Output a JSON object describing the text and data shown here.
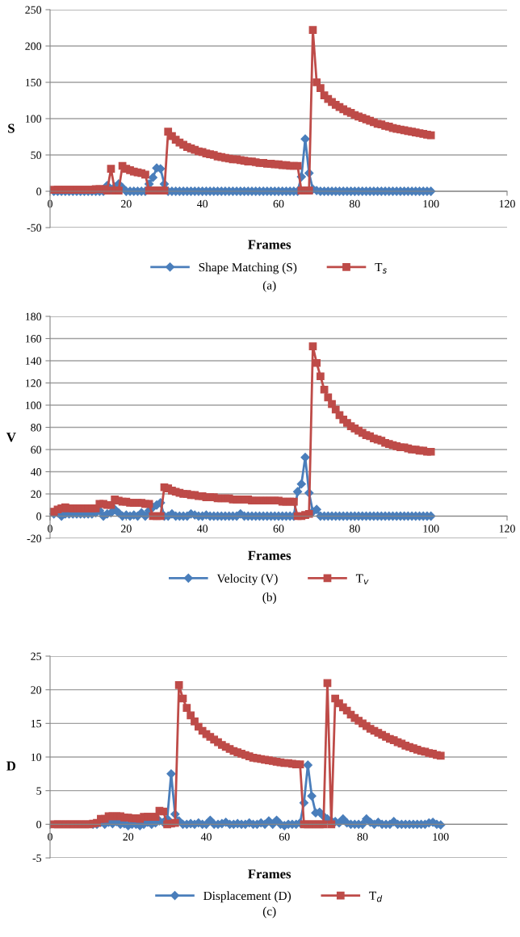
{
  "chart_data": [
    {
      "type": "line",
      "xlabel": "Frames",
      "ylabel": "S",
      "annotations": [
        "(a)"
      ],
      "xlim": [
        0,
        120
      ],
      "xticks": [
        0,
        20,
        40,
        60,
        80,
        100,
        120
      ],
      "ylim": [
        -50,
        250
      ],
      "yticks": [
        -50,
        0,
        50,
        100,
        150,
        200,
        250
      ],
      "grid": "y",
      "legend": "bottom",
      "x": [
        1,
        2,
        3,
        4,
        5,
        6,
        7,
        8,
        9,
        10,
        11,
        12,
        13,
        14,
        15,
        16,
        17,
        18,
        19,
        20,
        21,
        22,
        23,
        24,
        25,
        26,
        27,
        28,
        29,
        30,
        31,
        32,
        33,
        34,
        35,
        36,
        37,
        38,
        39,
        40,
        41,
        42,
        43,
        44,
        45,
        46,
        47,
        48,
        49,
        50,
        51,
        52,
        53,
        54,
        55,
        56,
        57,
        58,
        59,
        60,
        61,
        62,
        63,
        64,
        65,
        66,
        67,
        68,
        69,
        70,
        71,
        72,
        73,
        74,
        75,
        76,
        77,
        78,
        79,
        80,
        81,
        82,
        83,
        84,
        85,
        86,
        87,
        88,
        89,
        90,
        91,
        92,
        93,
        94,
        95,
        96,
        97,
        98,
        99,
        100
      ],
      "series": [
        {
          "name": "Shape Matching (S)",
          "color": "#4a7ebb",
          "marker": "diamond",
          "values": [
            0,
            0,
            0,
            0,
            0,
            0,
            0,
            0,
            0,
            0,
            0,
            0,
            0,
            0,
            8,
            2,
            6,
            10,
            5,
            0,
            0,
            0,
            0,
            0,
            0,
            10,
            19,
            32,
            31,
            10,
            0,
            0,
            0,
            0,
            0,
            0,
            0,
            0,
            0,
            0,
            0,
            0,
            0,
            0,
            0,
            0,
            0,
            0,
            0,
            0,
            0,
            0,
            0,
            0,
            0,
            0,
            0,
            0,
            0,
            0,
            0,
            0,
            0,
            0,
            0,
            20,
            72,
            25,
            3,
            1,
            0,
            0,
            0,
            0,
            0,
            0,
            0,
            0,
            0,
            0,
            0,
            0,
            0,
            0,
            0,
            0,
            0,
            0,
            0,
            0,
            0,
            0,
            0,
            0,
            0,
            0,
            0,
            0,
            0,
            0
          ]
        },
        {
          "name": "T$_{s}$",
          "color": "#be4b48",
          "marker": "square",
          "values": [
            2,
            2,
            2,
            2,
            2,
            2,
            2,
            2,
            2,
            2,
            2,
            3,
            3,
            3,
            1,
            31,
            1,
            1,
            35,
            31,
            29,
            27,
            26,
            25,
            23,
            1,
            1,
            1,
            1,
            1,
            82,
            76,
            71,
            67,
            64,
            61,
            59,
            57,
            55,
            54,
            52,
            51,
            50,
            48,
            47,
            46,
            45,
            44,
            44,
            43,
            42,
            41,
            41,
            40,
            39,
            39,
            38,
            38,
            37,
            37,
            36,
            36,
            35,
            35,
            35,
            1,
            1,
            1,
            222,
            150,
            142,
            132,
            127,
            123,
            119,
            116,
            113,
            110,
            108,
            105,
            103,
            101,
            99,
            97,
            95,
            93,
            92,
            90,
            89,
            87,
            86,
            85,
            84,
            83,
            82,
            81,
            80,
            79,
            78,
            77
          ]
        }
      ]
    },
    {
      "type": "line",
      "xlabel": "Frames",
      "ylabel": "V",
      "annotations": [
        "(b)"
      ],
      "xlim": [
        0,
        120
      ],
      "xticks": [
        0,
        20,
        40,
        60,
        80,
        100,
        120
      ],
      "ylim": [
        -20,
        180
      ],
      "yticks": [
        -20,
        0,
        20,
        40,
        60,
        80,
        100,
        120,
        140,
        160,
        180
      ],
      "grid": "y",
      "legend": "bottom",
      "x": [
        1,
        2,
        3,
        4,
        5,
        6,
        7,
        8,
        9,
        10,
        11,
        12,
        13,
        14,
        15,
        16,
        17,
        18,
        19,
        20,
        21,
        22,
        23,
        24,
        25,
        26,
        27,
        28,
        29,
        30,
        31,
        32,
        33,
        34,
        35,
        36,
        37,
        38,
        39,
        40,
        41,
        42,
        43,
        44,
        45,
        46,
        47,
        48,
        49,
        50,
        51,
        52,
        53,
        54,
        55,
        56,
        57,
        58,
        59,
        60,
        61,
        62,
        63,
        64,
        65,
        66,
        67,
        68,
        69,
        70,
        71,
        72,
        73,
        74,
        75,
        76,
        77,
        78,
        79,
        80,
        81,
        82,
        83,
        84,
        85,
        86,
        87,
        88,
        89,
        90,
        91,
        92,
        93,
        94,
        95,
        96,
        97,
        98,
        99,
        100
      ],
      "series": [
        {
          "name": "Velocity (V)",
          "color": "#4a7ebb",
          "marker": "diamond",
          "values": [
            2,
            3,
            0,
            2,
            2,
            2,
            2,
            2,
            2,
            2,
            2,
            3,
            5,
            0,
            2,
            3,
            6,
            3,
            0,
            1,
            0,
            1,
            0,
            3,
            0,
            5,
            8,
            10,
            12,
            0,
            0,
            2,
            0,
            0,
            0,
            0,
            2,
            1,
            0,
            0,
            1,
            0,
            0,
            0,
            0,
            0,
            0,
            0,
            0,
            2,
            0,
            0,
            0,
            0,
            0,
            0,
            0,
            0,
            0,
            0,
            0,
            0,
            0,
            0,
            22,
            29,
            53,
            21,
            4,
            6,
            0,
            0,
            0,
            0,
            0,
            0,
            0,
            0,
            0,
            0,
            0,
            0,
            0,
            0,
            0,
            0,
            0,
            0,
            0,
            0,
            0,
            0,
            0,
            0,
            0,
            0,
            0,
            0,
            0,
            0
          ]
        },
        {
          "name": "T$_{v}$",
          "color": "#be4b48",
          "marker": "square",
          "values": [
            4,
            6,
            7,
            8,
            7,
            7,
            7,
            7,
            7,
            7,
            7,
            7,
            11,
            11,
            10,
            10,
            15,
            14,
            13,
            13,
            12,
            12,
            12,
            12,
            11,
            11,
            0,
            0,
            0,
            26,
            25,
            23,
            22,
            21,
            20,
            20,
            19,
            19,
            18,
            18,
            17,
            17,
            17,
            16,
            16,
            16,
            16,
            15,
            15,
            15,
            15,
            15,
            14,
            14,
            14,
            14,
            14,
            14,
            14,
            14,
            13,
            13,
            13,
            13,
            0,
            0,
            1,
            2,
            153,
            138,
            126,
            114,
            107,
            101,
            96,
            91,
            87,
            84,
            81,
            79,
            77,
            75,
            73,
            72,
            70,
            69,
            68,
            66,
            65,
            64,
            63,
            62,
            62,
            61,
            60,
            60,
            59,
            59,
            58,
            58
          ]
        }
      ]
    },
    {
      "type": "line",
      "xlabel": "Frames",
      "ylabel": "D",
      "annotations": [
        "(c)"
      ],
      "xlim": [
        0,
        117
      ],
      "xticks": [
        0,
        20,
        40,
        60,
        80,
        100
      ],
      "ylim": [
        -5,
        25
      ],
      "yticks": [
        -5,
        0,
        5,
        10,
        15,
        20,
        25
      ],
      "grid": "y",
      "legend": "bottom",
      "x": [
        1,
        2,
        3,
        4,
        5,
        6,
        7,
        8,
        9,
        10,
        11,
        12,
        13,
        14,
        15,
        16,
        17,
        18,
        19,
        20,
        21,
        22,
        23,
        24,
        25,
        26,
        27,
        28,
        29,
        30,
        31,
        32,
        33,
        34,
        35,
        36,
        37,
        38,
        39,
        40,
        41,
        42,
        43,
        44,
        45,
        46,
        47,
        48,
        49,
        50,
        51,
        52,
        53,
        54,
        55,
        56,
        57,
        58,
        59,
        60,
        61,
        62,
        63,
        64,
        65,
        66,
        67,
        68,
        69,
        70,
        71,
        72,
        73,
        74,
        75,
        76,
        77,
        78,
        79,
        80,
        81,
        82,
        83,
        84,
        85,
        86,
        87,
        88,
        89,
        90,
        91,
        92,
        93,
        94,
        95,
        96,
        97,
        98,
        99,
        100
      ],
      "series": [
        {
          "name": "Displacement (D)",
          "color": "#4a7ebb",
          "marker": "diamond",
          "values": [
            null,
            null,
            null,
            null,
            null,
            null,
            null,
            null,
            null,
            null,
            0,
            0,
            0.3,
            0,
            0.3,
            0.1,
            0.4,
            0,
            0.1,
            -0.2,
            0,
            0,
            -0.2,
            0,
            0.3,
            0,
            0.2,
            0.5,
            0.3,
            0.8,
            7.5,
            1.5,
            0.5,
            0,
            0,
            0.1,
            0,
            0.2,
            0,
            0,
            0.6,
            0,
            0,
            0.1,
            0.3,
            0,
            0,
            0.1,
            0,
            0,
            0.2,
            0,
            0,
            0.2,
            0,
            0.5,
            0,
            0.6,
            0,
            -0.2,
            0,
            0,
            0,
            0.2,
            3.2,
            8.8,
            4.2,
            1.7,
            1.8,
            1.2,
            0.8,
            0.5,
            0.4,
            0.2,
            0.8,
            0.2,
            0,
            0,
            0,
            0,
            0.8,
            0.3,
            0,
            0.3,
            0,
            0,
            0,
            0.4,
            0,
            0,
            0,
            0,
            0,
            0,
            0,
            0,
            0.2,
            0.3,
            0,
            -0.1
          ]
        },
        {
          "name": "T$_{d}$",
          "color": "#be4b48",
          "marker": "square",
          "values": [
            0,
            0,
            0,
            0,
            0,
            0,
            0,
            0,
            0,
            0,
            0.1,
            0.2,
            0.8,
            0.8,
            1.2,
            1.2,
            1.2,
            1.2,
            1.0,
            1.0,
            0.9,
            0.9,
            0.8,
            1.1,
            1.1,
            1.1,
            1.1,
            2.0,
            1.9,
            0,
            0.1,
            0.2,
            20.7,
            18.7,
            17.3,
            16.2,
            15.3,
            14.5,
            13.9,
            13.4,
            13.0,
            12.6,
            12.2,
            11.8,
            11.5,
            11.2,
            10.9,
            10.7,
            10.5,
            10.3,
            10.1,
            9.9,
            9.8,
            9.7,
            9.6,
            9.5,
            9.4,
            9.3,
            9.2,
            9.1,
            9.1,
            9.0,
            8.9,
            8.9,
            0,
            0,
            0,
            0,
            0,
            0,
            21.0,
            0,
            18.7,
            18.0,
            17.4,
            16.9,
            16.3,
            15.8,
            15.4,
            15.0,
            14.6,
            14.2,
            13.9,
            13.6,
            13.3,
            13.0,
            12.7,
            12.5,
            12.2,
            12.0,
            11.7,
            11.5,
            11.3,
            11.1,
            10.9,
            10.8,
            10.6,
            10.5,
            10.3,
            10.2
          ]
        }
      ]
    }
  ]
}
